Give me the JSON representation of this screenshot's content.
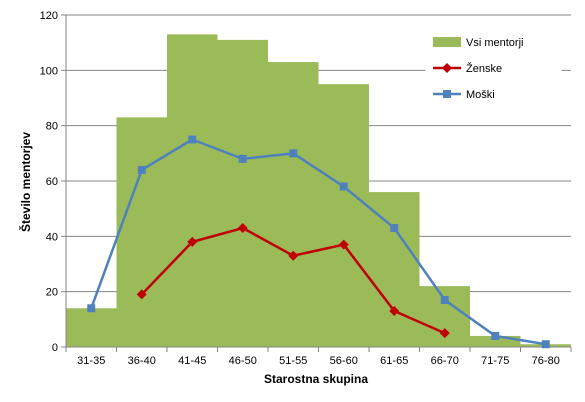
{
  "chart_data": {
    "type": "bar",
    "title": "",
    "xlabel": "Starostna skupina",
    "ylabel": "Število mentorjev",
    "categories": [
      "31-35",
      "36-40",
      "41-45",
      "46-50",
      "51-55",
      "56-60",
      "61-65",
      "66-70",
      "71-75",
      "76-80"
    ],
    "ylim": [
      0,
      120
    ],
    "yticks": [
      0,
      20,
      40,
      60,
      80,
      100,
      120
    ],
    "grid": true,
    "legend_position": "top-right",
    "series": [
      {
        "name": "Vsi mentorji",
        "kind": "bar",
        "color": "#9BBB59",
        "values": [
          14,
          83,
          113,
          111,
          103,
          95,
          56,
          22,
          4,
          1
        ]
      },
      {
        "name": "Ženske",
        "kind": "line",
        "marker": "diamond",
        "color": "#C00000",
        "values": [
          null,
          19,
          38,
          43,
          33,
          37,
          13,
          5,
          null,
          null
        ]
      },
      {
        "name": "Moški",
        "kind": "line",
        "marker": "square",
        "color": "#4F81BD",
        "values": [
          14,
          64,
          75,
          68,
          70,
          58,
          43,
          17,
          4,
          1
        ]
      }
    ]
  }
}
